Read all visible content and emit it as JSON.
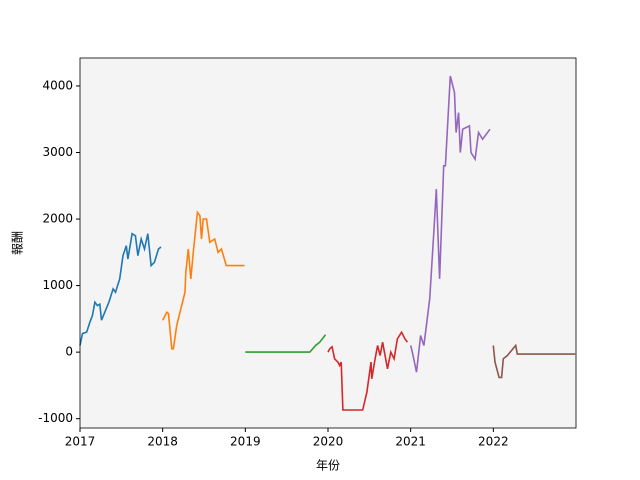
{
  "chart_data": {
    "type": "line",
    "x_label": "年份",
    "y_label": "報酬",
    "xlim": [
      2017,
      2023
    ],
    "xticks": [
      2017,
      2018,
      2019,
      2020,
      2021,
      2022
    ],
    "ylim": [
      -1140,
      4420
    ],
    "yticks": [
      -1000,
      0,
      1000,
      2000,
      3000,
      4000
    ],
    "background": "#f4f4f4",
    "series": [
      {
        "color": "#1f77b4",
        "x": [
          2017.0,
          2017.03,
          2017.08,
          2017.12,
          2017.15,
          2017.18,
          2017.21,
          2017.24,
          2017.26,
          2017.3,
          2017.35,
          2017.4,
          2017.43,
          2017.48,
          2017.52,
          2017.56,
          2017.58,
          2017.63,
          2017.67,
          2017.7,
          2017.74,
          2017.78,
          2017.82,
          2017.86,
          2017.9,
          2017.95,
          2017.98
        ],
        "values": [
          100,
          280,
          300,
          450,
          550,
          750,
          700,
          720,
          480,
          600,
          750,
          950,
          900,
          1100,
          1450,
          1600,
          1400,
          1780,
          1750,
          1450,
          1700,
          1550,
          1780,
          1300,
          1350,
          1550,
          1580
        ]
      },
      {
        "color": "#ff7f0e",
        "x": [
          2018.0,
          2018.05,
          2018.07,
          2018.11,
          2018.13,
          2018.17,
          2018.27,
          2018.28,
          2018.31,
          2018.34,
          2018.37,
          2018.42,
          2018.45,
          2018.47,
          2018.49,
          2018.53,
          2018.57,
          2018.63,
          2018.67,
          2018.71,
          2018.77,
          2018.99
        ],
        "values": [
          480,
          600,
          580,
          50,
          50,
          400,
          900,
          1200,
          1550,
          1100,
          1500,
          2100,
          2050,
          1700,
          2000,
          2000,
          1650,
          1700,
          1500,
          1550,
          1300,
          1300
        ]
      },
      {
        "color": "#2ca02c",
        "x": [
          2019.0,
          2019.25,
          2019.5,
          2019.78,
          2019.85,
          2019.9,
          2019.97
        ],
        "values": [
          0,
          0,
          0,
          0,
          100,
          150,
          260
        ]
      },
      {
        "color": "#d62728",
        "x": [
          2020.0,
          2020.02,
          2020.05,
          2020.08,
          2020.12,
          2020.14,
          2020.16,
          2020.18,
          2020.42,
          2020.47,
          2020.52,
          2020.53,
          2020.57,
          2020.6,
          2020.63,
          2020.66,
          2020.72,
          2020.76,
          2020.8,
          2020.84,
          2020.89,
          2020.93,
          2020.96
        ],
        "values": [
          0,
          50,
          80,
          -100,
          -150,
          -200,
          -150,
          -870,
          -870,
          -600,
          -150,
          -400,
          -100,
          100,
          -50,
          150,
          -250,
          0,
          -100,
          200,
          300,
          200,
          150
        ]
      },
      {
        "color": "#9467bd",
        "x": [
          2021.0,
          2021.02,
          2021.07,
          2021.12,
          2021.16,
          2021.23,
          2021.27,
          2021.29,
          2021.31,
          2021.35,
          2021.4,
          2021.42,
          2021.48,
          2021.53,
          2021.55,
          2021.58,
          2021.6,
          2021.63,
          2021.71,
          2021.73,
          2021.78,
          2021.82,
          2021.87,
          2021.96
        ],
        "values": [
          100,
          0,
          -300,
          250,
          100,
          800,
          1600,
          2000,
          2450,
          1100,
          2800,
          2800,
          4150,
          3900,
          3300,
          3600,
          3000,
          3350,
          3400,
          3000,
          2900,
          3300,
          3200,
          3350
        ]
      },
      {
        "color": "#8c564b",
        "x": [
          2022.0,
          2022.02,
          2022.07,
          2022.1,
          2022.12,
          2022.17,
          2022.27,
          2022.29,
          2022.99
        ],
        "values": [
          100,
          -150,
          -380,
          -380,
          -100,
          -50,
          100,
          -30,
          -30
        ]
      }
    ]
  }
}
